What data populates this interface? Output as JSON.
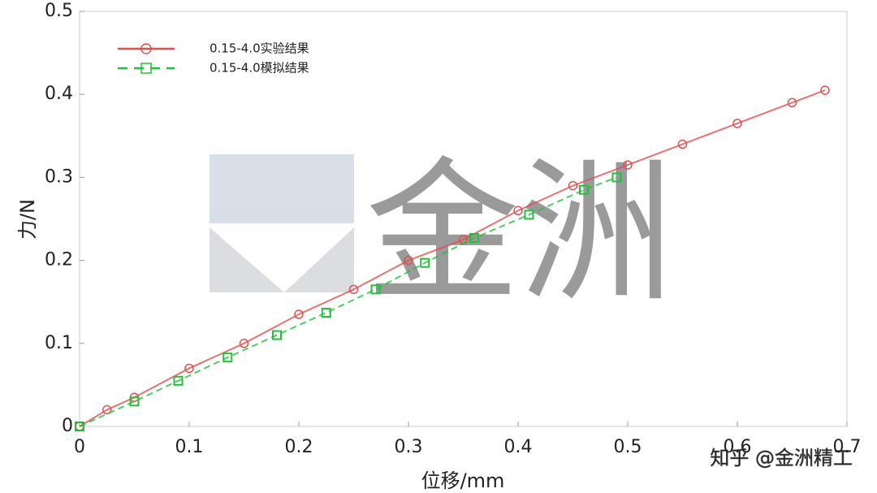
{
  "chart_data": {
    "type": "line",
    "x_label": "位移/mm",
    "y_label": "力/N",
    "watermark": "知乎 @金洲精工",
    "logo_text": "金洲",
    "xlim": [
      0,
      0.7
    ],
    "ylim": [
      0,
      0.5
    ],
    "xticks": [
      0,
      0.1,
      0.2,
      0.3,
      0.4,
      0.5,
      0.6,
      0.7
    ],
    "yticks": [
      0,
      0.1,
      0.2,
      0.3,
      0.4,
      0.5
    ],
    "grid": false,
    "legend": "upper left",
    "series": [
      {
        "name": "0.15-4.0实验结果",
        "color": "#e05050",
        "marker": "circle",
        "dash": "solid",
        "x": [
          0,
          0.025,
          0.05,
          0.1,
          0.15,
          0.2,
          0.25,
          0.3,
          0.35,
          0.4,
          0.45,
          0.5,
          0.55,
          0.6,
          0.65,
          0.68
        ],
        "values": [
          0,
          0.02,
          0.035,
          0.07,
          0.1,
          0.135,
          0.165,
          0.2,
          0.225,
          0.26,
          0.29,
          0.315,
          0.34,
          0.365,
          0.39,
          0.405
        ]
      },
      {
        "name": "0.15-4.0模拟结果",
        "color": "#22c03a",
        "marker": "square",
        "dash": "dashed",
        "x": [
          0,
          0.05,
          0.09,
          0.135,
          0.18,
          0.225,
          0.27,
          0.315,
          0.36,
          0.41,
          0.46,
          0.49
        ],
        "values": [
          0,
          0.03,
          0.055,
          0.083,
          0.11,
          0.137,
          0.165,
          0.197,
          0.227,
          0.255,
          0.285,
          0.3
        ]
      }
    ]
  }
}
